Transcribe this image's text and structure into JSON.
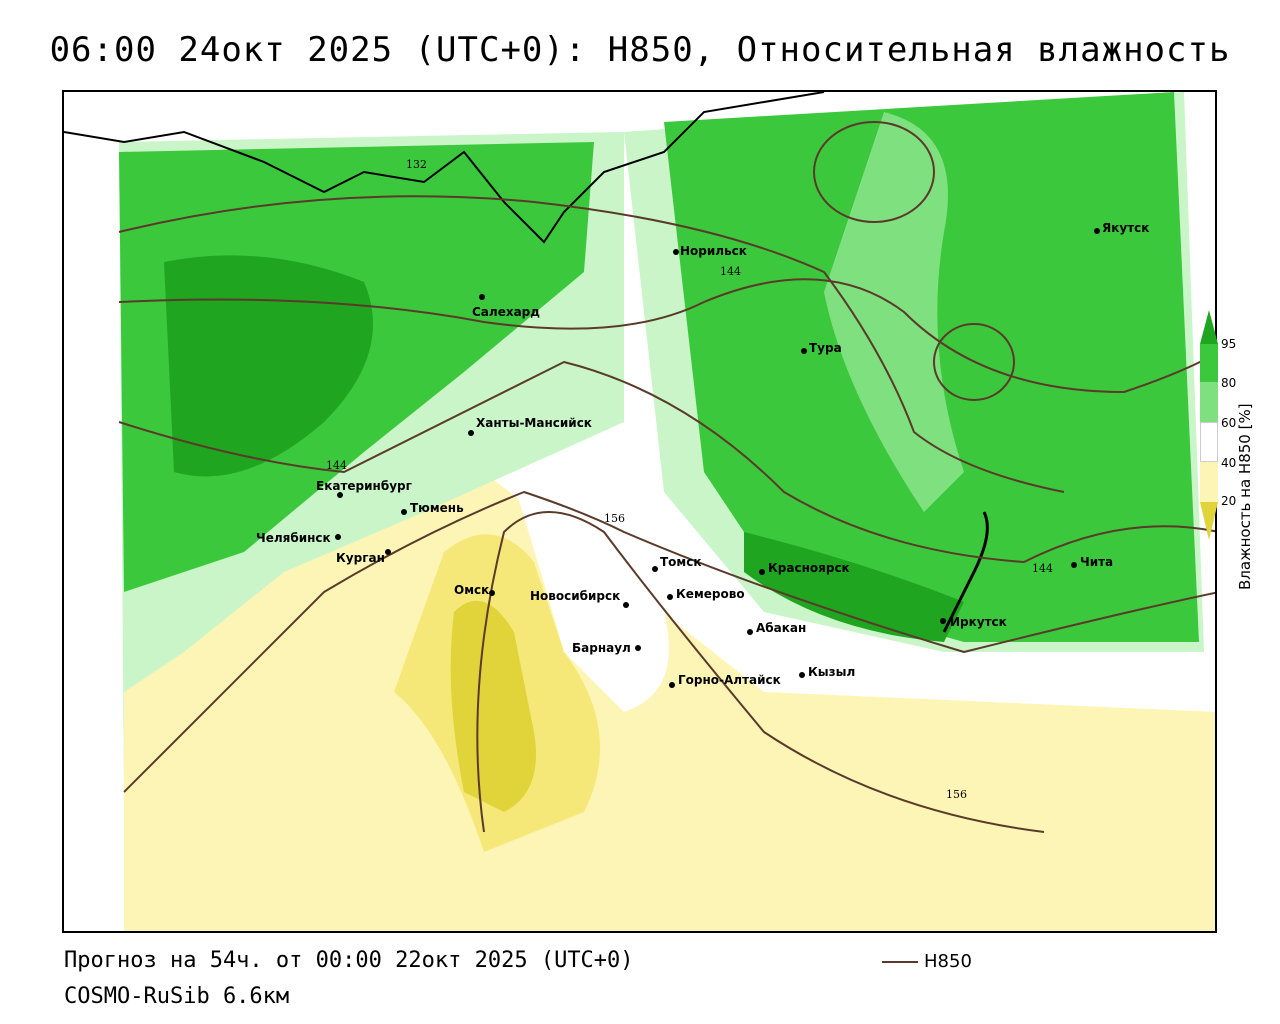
{
  "title": "06:00 24окт 2025 (UTC+0): H850, Относительная влажность",
  "footer": {
    "forecast": "Прогноз на 54ч. от 00:00 22окт 2025 (UTC+0)",
    "model": "COSMO-RuSib 6.6км"
  },
  "legend": {
    "line_label": "H850",
    "line_color": "#5a3a2a",
    "colorbar_title": "Влажность на H850 [%]",
    "ticks": [
      "95",
      "80",
      "60",
      "40",
      "20"
    ],
    "colors": {
      "dark_green": "#1fa51f",
      "green": "#3cc83c",
      "light_green": "#7fe07f",
      "pale_green": "#c9f5c9",
      "white": "#ffffff",
      "pale_yellow": "#fdf5b5",
      "yellow": "#f5e878",
      "dark_yellow": "#e0d43a"
    }
  },
  "cities": [
    {
      "name": "Салехард"
    },
    {
      "name": "Норильск"
    },
    {
      "name": "Якутск"
    },
    {
      "name": "Тура"
    },
    {
      "name": "Ханты-Мансийск"
    },
    {
      "name": "Екатеринбург"
    },
    {
      "name": "Тюмень"
    },
    {
      "name": "Челябинск"
    },
    {
      "name": "Курган"
    },
    {
      "name": "Омск"
    },
    {
      "name": "Новосибирск"
    },
    {
      "name": "Томск"
    },
    {
      "name": "Кемерово"
    },
    {
      "name": "Красноярск"
    },
    {
      "name": "Абакан"
    },
    {
      "name": "Барнаул"
    },
    {
      "name": "Горно-Алтайск"
    },
    {
      "name": "Кызыл"
    },
    {
      "name": "Иркутск"
    },
    {
      "name": "Чита"
    }
  ],
  "contours": [
    "132",
    "144",
    "144",
    "156",
    "144",
    "156"
  ]
}
